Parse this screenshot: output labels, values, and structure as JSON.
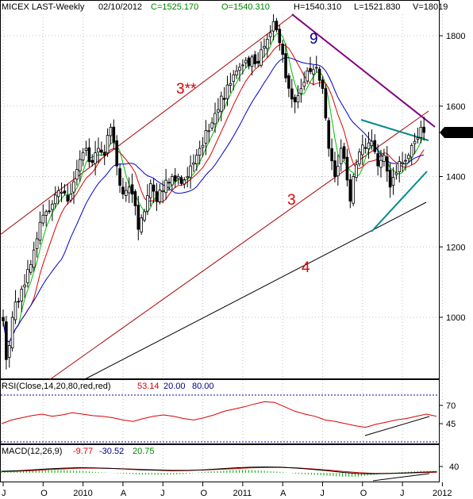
{
  "header": {
    "symbol": "MICEX LAST-Weekly",
    "date": "02/10/2012",
    "close": "C=1525.170",
    "open": "O=1540.310",
    "high": "H=1540.310",
    "low": "L=1521.830",
    "volume": "V=18019"
  },
  "colors": {
    "background": "#ffffff",
    "frame": "#000000",
    "grid": "#c0c0c0",
    "candle": "#000000",
    "ma_fast": "#00c000",
    "ma_mid": "#dd0000",
    "ma_slow": "#0000cc",
    "channel": "#aa0000",
    "trend_black": "#000000",
    "wedge": "#008b8b",
    "resistance": "#800080",
    "label_red": "#dd0000",
    "label_blue": "#000080",
    "rsi_line": "#dd0000",
    "rsi_levels": "#000088",
    "macd_line": "#000000",
    "macd_signal": "#dd0000",
    "macd_hist": "#00aa00",
    "close_tag": "#000000"
  },
  "chart_data": [
    {
      "type": "candlestick",
      "title": "MICEX LAST-Weekly",
      "y_ticks": [
        "1000",
        "1200",
        "1400",
        "1600",
        "1800"
      ],
      "ylim": [
        840,
        1890
      ],
      "x_ticks": [
        "J",
        "O",
        "2010",
        "A",
        "J",
        "O",
        "2011",
        "A",
        "J",
        "O",
        "J",
        "2012"
      ],
      "x_tick_weeks": [
        0,
        13,
        26,
        39,
        52,
        65,
        78,
        91,
        104,
        117,
        130,
        143
      ],
      "last": {
        "open": 1540.31,
        "high": 1540.31,
        "low": 1521.83,
        "close": 1525.17
      },
      "close_anchors": [
        [
          0,
          990
        ],
        [
          1,
          880
        ],
        [
          3,
          1000
        ],
        [
          6,
          1080
        ],
        [
          9,
          1150
        ],
        [
          12,
          1270
        ],
        [
          15,
          1300
        ],
        [
          18,
          1360
        ],
        [
          21,
          1330
        ],
        [
          24,
          1420
        ],
        [
          27,
          1480
        ],
        [
          29,
          1440
        ],
        [
          31,
          1480
        ],
        [
          33,
          1460
        ],
        [
          35,
          1540
        ],
        [
          37,
          1430
        ],
        [
          39,
          1350
        ],
        [
          41,
          1370
        ],
        [
          42,
          1350
        ],
        [
          44,
          1250
        ],
        [
          46,
          1300
        ],
        [
          48,
          1380
        ],
        [
          50,
          1330
        ],
        [
          52,
          1360
        ],
        [
          55,
          1400
        ],
        [
          58,
          1380
        ],
        [
          61,
          1430
        ],
        [
          64,
          1480
        ],
        [
          67,
          1530
        ],
        [
          70,
          1590
        ],
        [
          73,
          1660
        ],
        [
          76,
          1700
        ],
        [
          79,
          1730
        ],
        [
          82,
          1720
        ],
        [
          84,
          1760
        ],
        [
          86,
          1790
        ],
        [
          88,
          1840
        ],
        [
          90,
          1780
        ],
        [
          92,
          1680
        ],
        [
          94,
          1620
        ],
        [
          96,
          1630
        ],
        [
          99,
          1700
        ],
        [
          102,
          1710
        ],
        [
          104,
          1650
        ],
        [
          106,
          1480
        ],
        [
          108,
          1400
        ],
        [
          110,
          1480
        ],
        [
          112,
          1390
        ],
        [
          113,
          1330
        ],
        [
          114,
          1400
        ],
        [
          116,
          1470
        ],
        [
          118,
          1480
        ],
        [
          120,
          1500
        ],
        [
          122,
          1430
        ],
        [
          124,
          1460
        ],
        [
          126,
          1370
        ],
        [
          128,
          1410
        ],
        [
          130,
          1440
        ],
        [
          132,
          1460
        ],
        [
          134,
          1500
        ],
        [
          136,
          1540
        ],
        [
          137,
          1525
        ]
      ],
      "annotations": [
        "3**",
        "3",
        "4",
        "9"
      ]
    },
    {
      "type": "line",
      "title": "RSI(Close,14,20,80,red,red)",
      "value": "53.14",
      "level_low": "20.00",
      "level_high": "80.00",
      "y_ticks": [
        "70",
        "45"
      ],
      "series": [
        {
          "values": [
            45,
            50,
            53,
            56,
            58,
            55,
            57,
            60,
            58,
            56,
            55,
            53,
            50,
            48,
            52,
            55,
            57,
            55,
            52,
            50,
            53,
            57,
            62,
            65,
            68,
            72,
            75,
            74,
            68,
            62,
            58,
            55,
            50,
            48,
            45,
            42,
            40,
            44,
            47,
            50,
            52,
            55,
            58,
            55
          ]
        },
        {
          "values": [
            40,
            42,
            44,
            46,
            48,
            49,
            51
          ]
        }
      ]
    },
    {
      "type": "line",
      "title": "MACD(12,26,9)",
      "values_shown": [
        "-9.77",
        "-30.52",
        "20.75"
      ],
      "y_ticks": [
        "40"
      ],
      "series": [
        {
          "values": [
            20,
            22,
            26,
            30,
            33,
            35,
            34,
            32,
            29,
            26,
            24,
            22,
            23,
            26,
            30,
            34,
            37,
            38,
            37,
            33,
            28,
            22,
            15,
            10,
            9,
            11,
            13,
            16,
            18
          ]
        },
        {
          "values": [
            18,
            20,
            23,
            27,
            30,
            33,
            33,
            32,
            30,
            28,
            26,
            24,
            24,
            25,
            28,
            31,
            34,
            36,
            36,
            34,
            30,
            25,
            19,
            14,
            11,
            11,
            12,
            14,
            16
          ]
        }
      ]
    }
  ]
}
